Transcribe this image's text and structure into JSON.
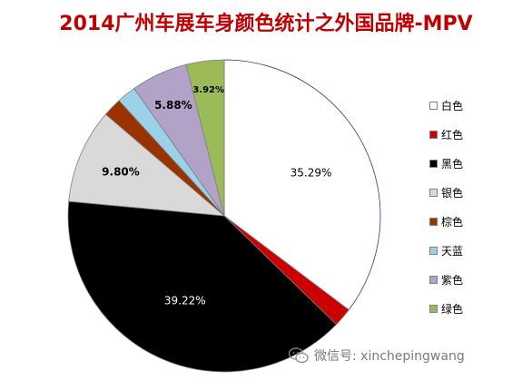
{
  "chart_data": {
    "type": "pie",
    "title": "2014广州车展车身颜色统计之外国品牌-MPV",
    "legend_position": "right",
    "slices": [
      {
        "name": "白色",
        "value": 35.29,
        "label": "35.29%",
        "color": "#ffffff",
        "label_color": "#000000"
      },
      {
        "name": "红色",
        "value": 1.96,
        "label": "",
        "color": "#cc0000",
        "label_color": "#000000"
      },
      {
        "name": "黑色",
        "value": 39.22,
        "label": "39.22%",
        "color": "#000000",
        "label_color": "#ffffff"
      },
      {
        "name": "银色",
        "value": 9.8,
        "label": "9.80%",
        "color": "#d9d9d9",
        "label_color": "#000000"
      },
      {
        "name": "棕色",
        "value": 1.96,
        "label": "",
        "color": "#993300",
        "label_color": "#000000"
      },
      {
        "name": "天蓝",
        "value": 1.96,
        "label": "",
        "color": "#9bd2e9",
        "label_color": "#000000"
      },
      {
        "name": "紫色",
        "value": 5.88,
        "label": "5.88%",
        "color": "#b3a2c7",
        "label_color": "#000000"
      },
      {
        "name": "绿色",
        "value": 3.92,
        "label": "3.92%",
        "color": "#9bbb59",
        "label_color": "#000000"
      }
    ]
  },
  "watermark": {
    "text": "微信号: xinchepingwang",
    "icon": "wechat-icon"
  }
}
